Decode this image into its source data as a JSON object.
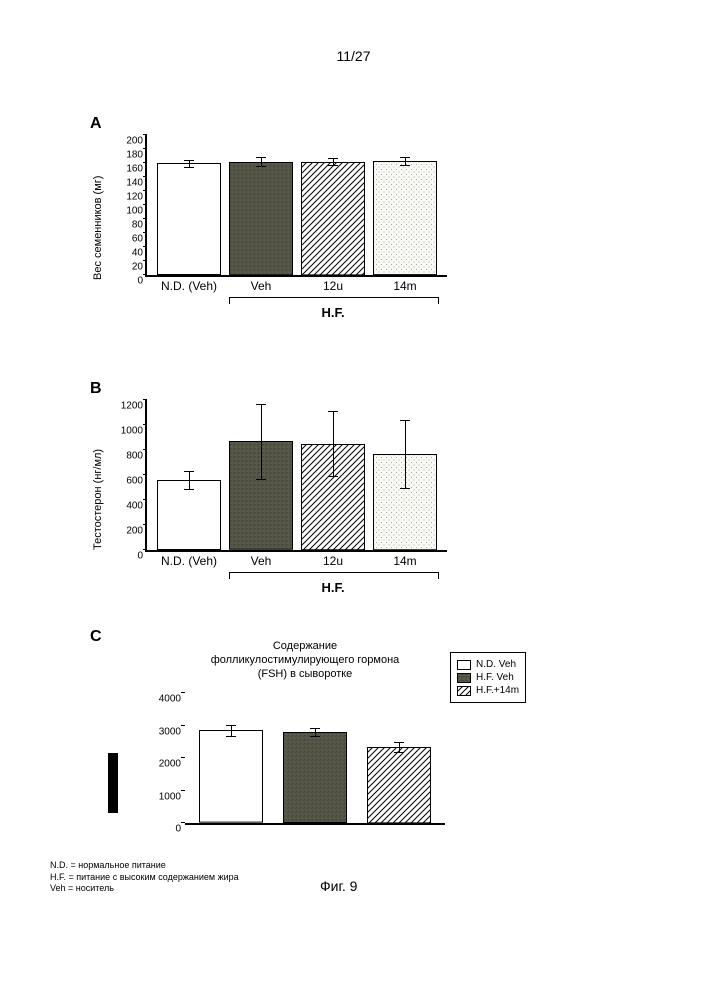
{
  "page_number": "11/27",
  "figure_label": "Фиг. 9",
  "footnotes": {
    "nd": "N.D. = нормальное питание",
    "hf": "H.F. = питание с высоким содержанием жира",
    "veh": "Veh = носитель"
  },
  "patterns": {
    "open": {
      "fill": "#ffffff",
      "pattern": "none"
    },
    "dark": {
      "fill": "#4a4a42",
      "pattern": "noise"
    },
    "hatch": {
      "fill": "#ffffff",
      "pattern": "diag"
    },
    "dots": {
      "fill": "#f5f5f0",
      "pattern": "dots"
    }
  },
  "panelA": {
    "label": "A",
    "ylabel": "Вес семенников (мг)",
    "ylim": [
      0,
      200
    ],
    "ytick_step": 20,
    "categories": [
      "N.D. (Veh)",
      "Veh",
      "12u",
      "14m"
    ],
    "values": [
      160,
      162,
      162,
      163
    ],
    "errors": [
      5,
      6,
      5,
      6
    ],
    "bar_patterns": [
      "open",
      "dark",
      "hatch",
      "dots"
    ],
    "hf_span": [
      1,
      3
    ],
    "hf_label": "H.F."
  },
  "panelB": {
    "label": "B",
    "ylabel": "Тестостерон (нг/мл)",
    "ylim": [
      0,
      1200
    ],
    "ytick_step": 200,
    "categories": [
      "N.D. (Veh)",
      "Veh",
      "12u",
      "14m"
    ],
    "values": [
      560,
      870,
      850,
      770
    ],
    "errors": [
      70,
      300,
      260,
      270
    ],
    "bar_patterns": [
      "open",
      "dark",
      "hatch",
      "dots"
    ],
    "hf_span": [
      1,
      3
    ],
    "hf_label": "H.F."
  },
  "panelC": {
    "label": "C",
    "title": "Содержание фолликулостимулирующего гормона (FSH) в сыворотке",
    "ylim": [
      0,
      4000
    ],
    "ytick_step": 1000,
    "categories": [
      "",
      "",
      ""
    ],
    "values": [
      2850,
      2800,
      2350
    ],
    "errors": [
      180,
      110,
      150
    ],
    "bar_patterns": [
      "open",
      "dark",
      "hatch"
    ],
    "legend": [
      {
        "label": "N.D. Veh",
        "pattern": "open"
      },
      {
        "label": "H.F. Veh",
        "pattern": "dark"
      },
      {
        "label": "H.F.+14m",
        "pattern": "hatch"
      }
    ]
  }
}
